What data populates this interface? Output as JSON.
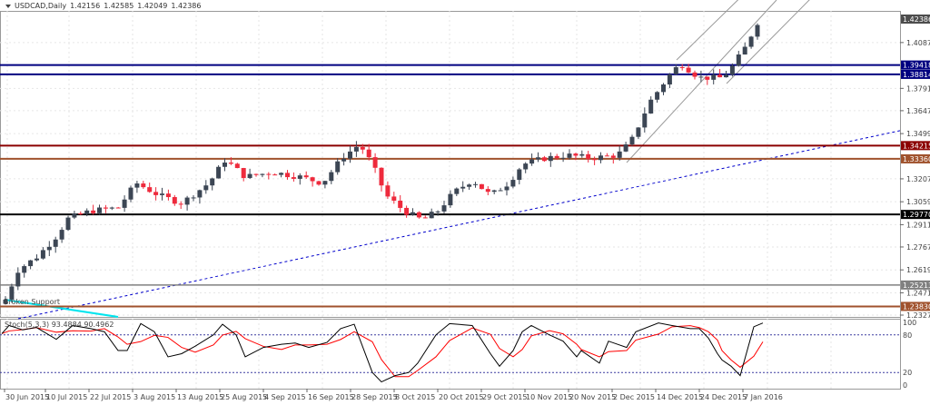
{
  "header": {
    "symbol": "USDCAD,Daily",
    "open": "1.42156",
    "high": "1.42585",
    "low": "1.42049",
    "close": "1.42386"
  },
  "annotations": {
    "broken_support": "Broken Support"
  },
  "stochastic": {
    "label": "Stoch(5,3,3) 93.4884 90.4962",
    "levels": [
      "100",
      "80",
      "20",
      "0"
    ]
  },
  "chart_data": {
    "type": "candlestick",
    "title": "USDCAD,Daily",
    "price_ticks": [
      "1.40870",
      "1.37910",
      "1.36470",
      "1.34990",
      "1.32070",
      "1.30590",
      "1.29110",
      "1.27670",
      "1.26190",
      "1.24710",
      "1.23270"
    ],
    "horizontal_lines": [
      {
        "value": "1.42386",
        "color": "#4d4d4d",
        "label": "current price"
      },
      {
        "value": "1.39418",
        "color": "#000080"
      },
      {
        "value": "1.38814",
        "color": "#000080"
      },
      {
        "value": "1.34215",
        "color": "#8b0000"
      },
      {
        "value": "1.33360",
        "color": "#a0522d"
      },
      {
        "value": "1.29770",
        "color": "#000000"
      },
      {
        "value": "1.25213",
        "color": "#808080"
      },
      {
        "value": "1.23830",
        "color": "#a0522d"
      }
    ],
    "x_labels": [
      "30 Jun 2015",
      "10 Jul 2015",
      "22 Jul 2015",
      "3 Aug 2015",
      "13 Aug 2015",
      "25 Aug 2015",
      "4 Sep 2015",
      "16 Sep 2015",
      "28 Sep 2015",
      "8 Oct 2015",
      "20 Oct 2015",
      "29 Oct 2015",
      "10 Nov 2015",
      "20 Nov 2015",
      "2 Dec 2015",
      "14 Dec 2015",
      "24 Dec 2015",
      "7 Jan 2016"
    ],
    "colors": {
      "bull": "#3c4654",
      "bear": "#ee2a3c",
      "grid": "#e6e6e6",
      "stoch_main": "#000000",
      "stoch_signal": "#ff0000",
      "trendline": "#0000cc",
      "channel": "#999999",
      "broken_support": "#00e5ee"
    },
    "ylim": [
      1.2327,
      1.42386
    ],
    "stochastic_levels": [
      80,
      20
    ],
    "stochastic_last": {
      "main": 93.4884,
      "signal": 90.4962
    }
  }
}
